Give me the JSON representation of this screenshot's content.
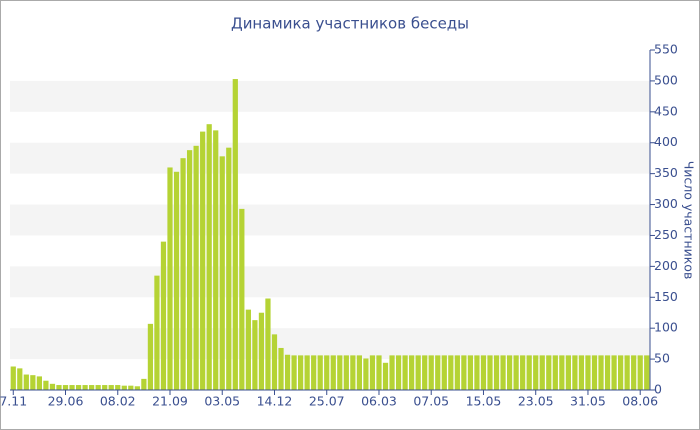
{
  "chart_data": {
    "type": "bar",
    "title": "Динамика участников беседы",
    "y_axis_label": "Число участников",
    "categories": [
      "7.11",
      null,
      null,
      null,
      null,
      null,
      null,
      null,
      "29.06",
      null,
      null,
      null,
      null,
      null,
      null,
      null,
      "08.02",
      null,
      null,
      null,
      null,
      null,
      null,
      null,
      "21.09",
      null,
      null,
      null,
      null,
      null,
      null,
      null,
      "03.05",
      null,
      null,
      null,
      null,
      null,
      null,
      null,
      "14.12",
      null,
      null,
      null,
      null,
      null,
      null,
      null,
      "25.07",
      null,
      null,
      null,
      null,
      null,
      null,
      null,
      "06.03",
      null,
      null,
      null,
      null,
      null,
      null,
      null,
      "07.05",
      null,
      null,
      null,
      null,
      null,
      null,
      null,
      "15.05",
      null,
      null,
      null,
      null,
      null,
      null,
      null,
      "23.05",
      null,
      null,
      null,
      null,
      null,
      null,
      null,
      "31.05",
      null,
      null,
      null,
      null,
      null,
      null,
      null,
      "08.06",
      null
    ],
    "values": [
      38,
      35,
      25,
      24,
      22,
      15,
      10,
      8,
      8,
      8,
      8,
      8,
      8,
      8,
      8,
      8,
      8,
      7,
      7,
      6,
      18,
      107,
      185,
      240,
      360,
      353,
      375,
      388,
      395,
      418,
      430,
      420,
      378,
      392,
      503,
      293,
      130,
      113,
      125,
      148,
      90,
      68,
      57,
      56,
      56,
      56,
      56,
      56,
      56,
      56,
      56,
      56,
      56,
      56,
      51,
      56,
      56,
      44,
      56,
      56,
      56,
      56,
      56,
      56,
      56,
      56,
      56,
      56,
      56,
      56,
      56,
      56,
      56,
      56,
      56,
      56,
      56,
      56,
      56,
      56,
      56,
      56,
      56,
      56,
      56,
      56,
      56,
      56,
      56,
      56,
      56,
      56,
      56,
      56,
      56,
      56,
      56,
      56
    ],
    "color": "#b5d334",
    "ylim": [
      0,
      550
    ],
    "yticks": [
      0,
      50,
      100,
      150,
      200,
      250,
      300,
      350,
      400,
      450,
      500,
      550
    ],
    "grid": "bands",
    "y_axis_side": "right"
  }
}
